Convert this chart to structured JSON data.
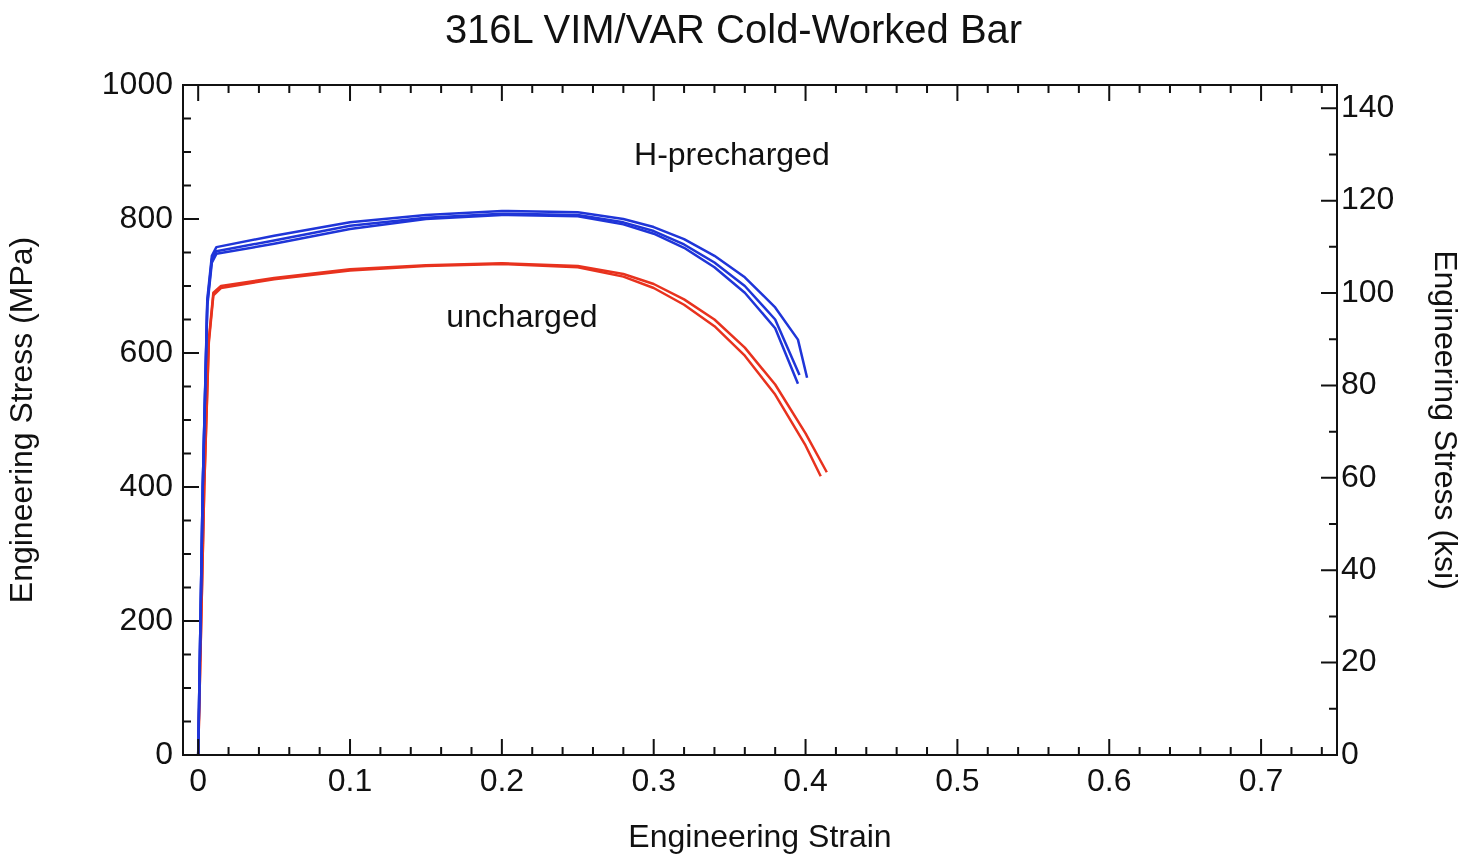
{
  "chart_data": {
    "type": "line",
    "title": "316L VIM/VAR Cold-Worked Bar",
    "xlabel": "Engineering Strain",
    "ylabel": "Engineering Stress (MPa)",
    "y2label": "Engineering Stress (ksi)",
    "xlim": [
      -0.01,
      0.75
    ],
    "xticks": [
      0,
      {
        "value": 0.02,
        "label": null
      },
      {
        "value": 0.04,
        "label": null
      },
      {
        "value": 0.06,
        "label": null
      },
      {
        "value": 0.08,
        "label": null
      },
      0.1,
      {
        "value": 0.12,
        "label": null
      },
      {
        "value": 0.14,
        "label": null
      },
      {
        "value": 0.16,
        "label": null
      },
      {
        "value": 0.18,
        "label": null
      },
      0.2,
      {
        "value": 0.22,
        "label": null
      },
      {
        "value": 0.24,
        "label": null
      },
      {
        "value": 0.26,
        "label": null
      },
      {
        "value": 0.28,
        "label": null
      },
      0.3,
      {
        "value": 0.32,
        "label": null
      },
      {
        "value": 0.34,
        "label": null
      },
      {
        "value": 0.36,
        "label": null
      },
      {
        "value": 0.38,
        "label": null
      },
      0.4,
      {
        "value": 0.42,
        "label": null
      },
      {
        "value": 0.44,
        "label": null
      },
      {
        "value": 0.46,
        "label": null
      },
      {
        "value": 0.48,
        "label": null
      },
      0.5,
      {
        "value": 0.52,
        "label": null
      },
      {
        "value": 0.54,
        "label": null
      },
      {
        "value": 0.56,
        "label": null
      },
      {
        "value": 0.58,
        "label": null
      },
      0.6,
      {
        "value": 0.62,
        "label": null
      },
      {
        "value": 0.64,
        "label": null
      },
      {
        "value": 0.66,
        "label": null
      },
      {
        "value": 0.68,
        "label": null
      },
      0.7,
      {
        "value": 0.72,
        "label": null
      },
      {
        "value": 0.74,
        "label": null
      }
    ],
    "ylim": [
      0,
      1000
    ],
    "yticks": [
      0,
      {
        "value": 50,
        "label": null
      },
      {
        "value": 100,
        "label": null
      },
      {
        "value": 150,
        "label": null
      },
      200,
      {
        "value": 250,
        "label": null
      },
      {
        "value": 300,
        "label": null
      },
      {
        "value": 350,
        "label": null
      },
      400,
      {
        "value": 450,
        "label": null
      },
      {
        "value": 500,
        "label": null
      },
      {
        "value": 550,
        "label": null
      },
      600,
      {
        "value": 650,
        "label": null
      },
      {
        "value": 700,
        "label": null
      },
      {
        "value": 750,
        "label": null
      },
      800,
      {
        "value": 850,
        "label": null
      },
      {
        "value": 900,
        "label": null
      },
      {
        "value": 950,
        "label": null
      },
      1000
    ],
    "y2lim": [
      0,
      145.04
    ],
    "y2ticks": [
      0,
      {
        "value": 10,
        "label": null
      },
      20,
      {
        "value": 30,
        "label": null
      },
      40,
      {
        "value": 50,
        "label": null
      },
      60,
      {
        "value": 70,
        "label": null
      },
      80,
      {
        "value": 90,
        "label": null
      },
      100,
      {
        "value": 110,
        "label": null
      },
      120,
      {
        "value": 130,
        "label": null
      },
      140
    ],
    "line_style": "solid",
    "series": [
      {
        "name": "H-precharged",
        "color": "#1f35d8",
        "x": [
          0,
          0.003,
          0.006,
          0.009,
          0.012,
          0.05,
          0.1,
          0.15,
          0.2,
          0.25,
          0.28,
          0.3,
          0.32,
          0.34,
          0.36,
          0.38,
          0.395,
          0.401
        ],
        "values": [
          0,
          400,
          680,
          745,
          758,
          775,
          795,
          806,
          812,
          810,
          800,
          788,
          770,
          745,
          713,
          668,
          620,
          563
        ]
      },
      {
        "color": "#1f35d8",
        "x": [
          0,
          0.003,
          0.006,
          0.009,
          0.012,
          0.05,
          0.1,
          0.15,
          0.2,
          0.25,
          0.28,
          0.3,
          0.32,
          0.34,
          0.36,
          0.38,
          0.396
        ],
        "values": [
          0,
          400,
          675,
          740,
          752,
          768,
          790,
          802,
          808,
          806,
          795,
          782,
          762,
          735,
          700,
          650,
          567
        ]
      },
      {
        "color": "#1f35d8",
        "x": [
          0,
          0.003,
          0.006,
          0.009,
          0.012,
          0.05,
          0.1,
          0.15,
          0.2,
          0.25,
          0.28,
          0.3,
          0.32,
          0.34,
          0.36,
          0.38,
          0.395
        ],
        "values": [
          0,
          400,
          670,
          735,
          748,
          763,
          785,
          800,
          806,
          804,
          792,
          778,
          757,
          728,
          690,
          637,
          554
        ]
      },
      {
        "name": "uncharged",
        "color": "#e8321e",
        "x": [
          0,
          0.004,
          0.007,
          0.01,
          0.015,
          0.05,
          0.1,
          0.15,
          0.2,
          0.25,
          0.28,
          0.3,
          0.32,
          0.34,
          0.36,
          0.38,
          0.4,
          0.414
        ],
        "values": [
          0,
          400,
          620,
          690,
          700,
          712,
          725,
          731,
          734,
          730,
          718,
          703,
          680,
          650,
          608,
          553,
          480,
          422
        ]
      },
      {
        "color": "#e8321e",
        "x": [
          0,
          0.004,
          0.007,
          0.01,
          0.015,
          0.05,
          0.1,
          0.15,
          0.2,
          0.25,
          0.28,
          0.3,
          0.32,
          0.34,
          0.36,
          0.38,
          0.4,
          0.41
        ],
        "values": [
          0,
          400,
          615,
          686,
          697,
          710,
          723,
          730,
          733,
          728,
          714,
          697,
          672,
          640,
          596,
          538,
          462,
          416
        ]
      }
    ]
  }
}
